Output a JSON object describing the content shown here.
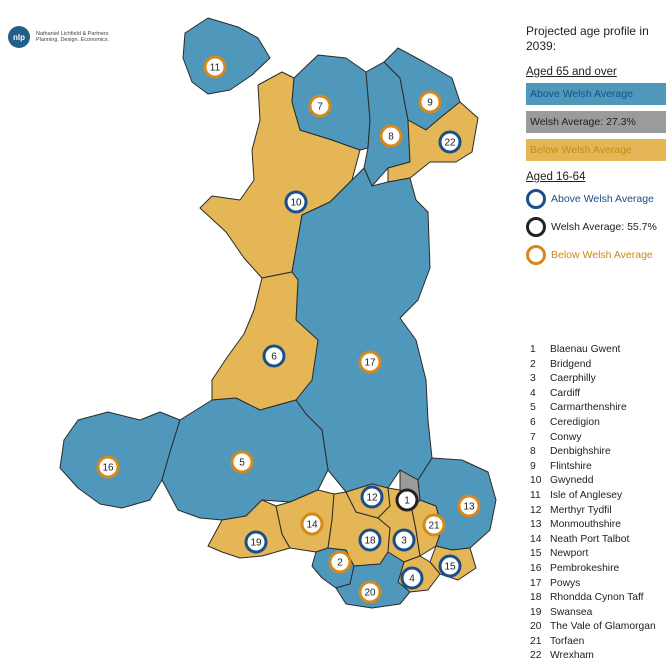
{
  "logo": {
    "mark": "nlp",
    "text": "Nathaniel Lichfield & Partners Planning. Design. Economics."
  },
  "legend": {
    "title": "Projected age profile in 2039:",
    "aged65": {
      "heading": "Aged 65 and over",
      "above": "Above Welsh Average",
      "average": "Welsh Average: 27.3%",
      "below": "Below Welsh Average"
    },
    "aged16": {
      "heading": "Aged 16-64",
      "above": "Above Welsh Average",
      "average": "Welsh Average: 55.7%",
      "below": "Below Welsh Average"
    }
  },
  "colors": {
    "above_fill": "#4f97bb",
    "average_fill": "#9b9b9b",
    "below_fill": "#e4b656",
    "above_ring": "#1b4f8a",
    "average_ring": "#222222",
    "below_ring": "#d48a1a",
    "above_text": "#1b4f8a",
    "below_text": "#c98a16"
  },
  "key": [
    {
      "num": "1",
      "name": "Blaenau Gwent"
    },
    {
      "num": "2",
      "name": "Bridgend"
    },
    {
      "num": "3",
      "name": "Caerphilly"
    },
    {
      "num": "4",
      "name": "Cardiff"
    },
    {
      "num": "5",
      "name": "Carmarthenshire"
    },
    {
      "num": "6",
      "name": "Ceredigion"
    },
    {
      "num": "7",
      "name": "Conwy"
    },
    {
      "num": "8",
      "name": "Denbighshire"
    },
    {
      "num": "9",
      "name": "Flintshire"
    },
    {
      "num": "10",
      "name": "Gwynedd"
    },
    {
      "num": "11",
      "name": "Isle of Anglesey"
    },
    {
      "num": "12",
      "name": "Merthyr Tydfil"
    },
    {
      "num": "13",
      "name": "Monmouthshire"
    },
    {
      "num": "14",
      "name": "Neath Port Talbot"
    },
    {
      "num": "15",
      "name": "Newport"
    },
    {
      "num": "16",
      "name": "Pembrokeshire"
    },
    {
      "num": "17",
      "name": "Powys"
    },
    {
      "num": "18",
      "name": "Rhondda Cynon Taff"
    },
    {
      "num": "19",
      "name": "Swansea"
    },
    {
      "num": "20",
      "name": "The Vale of Glamorgan"
    },
    {
      "num": "21",
      "name": "Torfaen"
    },
    {
      "num": "22",
      "name": "Wrexham"
    }
  ],
  "areas": [
    {
      "num": "1",
      "aged65": "average",
      "aged16": "average"
    },
    {
      "num": "2",
      "aged65": "above",
      "aged16": "below"
    },
    {
      "num": "3",
      "aged65": "below",
      "aged16": "above"
    },
    {
      "num": "4",
      "aged65": "below",
      "aged16": "above"
    },
    {
      "num": "5",
      "aged65": "above",
      "aged16": "below"
    },
    {
      "num": "6",
      "aged65": "below",
      "aged16": "above"
    },
    {
      "num": "7",
      "aged65": "above",
      "aged16": "below"
    },
    {
      "num": "8",
      "aged65": "above",
      "aged16": "below"
    },
    {
      "num": "9",
      "aged65": "above",
      "aged16": "below"
    },
    {
      "num": "10",
      "aged65": "below",
      "aged16": "above"
    },
    {
      "num": "11",
      "aged65": "above",
      "aged16": "below"
    },
    {
      "num": "12",
      "aged65": "below",
      "aged16": "above"
    },
    {
      "num": "13",
      "aged65": "above",
      "aged16": "below"
    },
    {
      "num": "14",
      "aged65": "below",
      "aged16": "below"
    },
    {
      "num": "15",
      "aged65": "below",
      "aged16": "above"
    },
    {
      "num": "16",
      "aged65": "above",
      "aged16": "below"
    },
    {
      "num": "17",
      "aged65": "above",
      "aged16": "below"
    },
    {
      "num": "18",
      "aged65": "below",
      "aged16": "above"
    },
    {
      "num": "19",
      "aged65": "below",
      "aged16": "above"
    },
    {
      "num": "20",
      "aged65": "above",
      "aged16": "below"
    },
    {
      "num": "21",
      "aged65": "below",
      "aged16": "below"
    },
    {
      "num": "22",
      "aged65": "below",
      "aged16": "above"
    }
  ]
}
